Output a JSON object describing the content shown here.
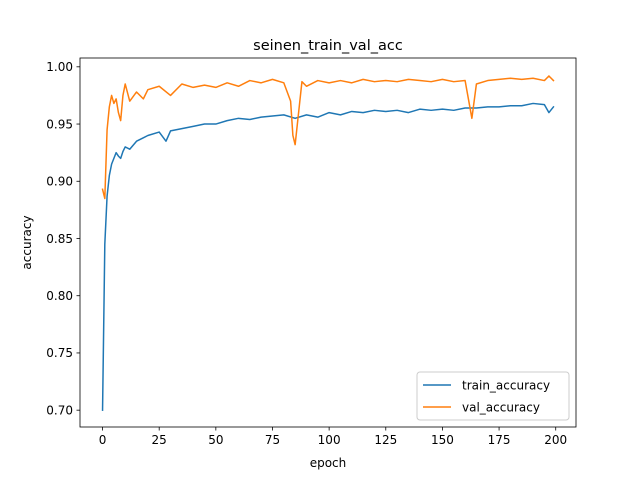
{
  "chart_data": {
    "type": "line",
    "title": "seinen_train_val_acc",
    "xlabel": "epoch",
    "ylabel": "accuracy",
    "xlim": [
      -9.95,
      208.95
    ],
    "ylim": [
      0.6853,
      1.0077
    ],
    "x_ticks": [
      0,
      25,
      50,
      75,
      100,
      125,
      150,
      175,
      200
    ],
    "y_ticks": [
      0.7,
      0.75,
      0.8,
      0.85,
      0.9,
      0.95,
      1.0
    ],
    "y_tick_decimals": 2,
    "grid": false,
    "legend_position": "lower-right",
    "series": [
      {
        "name": "train_accuracy",
        "color": "#1f77b4",
        "x": [
          0,
          1,
          2,
          3,
          4,
          5,
          6,
          7,
          8,
          9,
          10,
          12,
          15,
          18,
          20,
          25,
          28,
          30,
          35,
          40,
          45,
          50,
          55,
          60,
          65,
          70,
          75,
          80,
          85,
          90,
          95,
          100,
          105,
          110,
          115,
          120,
          125,
          130,
          135,
          140,
          145,
          150,
          155,
          160,
          165,
          170,
          175,
          180,
          185,
          190,
          195,
          197,
          199
        ],
        "values": [
          0.7,
          0.845,
          0.887,
          0.905,
          0.915,
          0.92,
          0.925,
          0.922,
          0.92,
          0.926,
          0.93,
          0.928,
          0.935,
          0.938,
          0.94,
          0.943,
          0.935,
          0.944,
          0.946,
          0.948,
          0.95,
          0.95,
          0.953,
          0.955,
          0.954,
          0.956,
          0.957,
          0.958,
          0.955,
          0.958,
          0.956,
          0.96,
          0.958,
          0.961,
          0.96,
          0.962,
          0.961,
          0.962,
          0.96,
          0.963,
          0.962,
          0.963,
          0.962,
          0.964,
          0.964,
          0.965,
          0.965,
          0.966,
          0.966,
          0.968,
          0.967,
          0.96,
          0.965
        ]
      },
      {
        "name": "val_accuracy",
        "color": "#ff7f0e",
        "x": [
          0,
          1,
          2,
          3,
          4,
          5,
          6,
          7,
          8,
          9,
          10,
          12,
          15,
          18,
          20,
          25,
          30,
          35,
          40,
          45,
          50,
          55,
          60,
          65,
          70,
          75,
          80,
          83,
          84,
          85,
          88,
          90,
          95,
          100,
          105,
          110,
          115,
          120,
          125,
          130,
          135,
          140,
          145,
          150,
          155,
          160,
          163,
          165,
          170,
          175,
          180,
          185,
          190,
          195,
          197,
          199
        ],
        "values": [
          0.893,
          0.885,
          0.945,
          0.965,
          0.975,
          0.968,
          0.972,
          0.96,
          0.953,
          0.975,
          0.985,
          0.97,
          0.978,
          0.972,
          0.98,
          0.983,
          0.975,
          0.985,
          0.982,
          0.984,
          0.982,
          0.986,
          0.983,
          0.988,
          0.986,
          0.989,
          0.986,
          0.97,
          0.94,
          0.932,
          0.987,
          0.983,
          0.988,
          0.986,
          0.988,
          0.986,
          0.989,
          0.987,
          0.988,
          0.987,
          0.989,
          0.988,
          0.987,
          0.989,
          0.987,
          0.988,
          0.955,
          0.985,
          0.988,
          0.989,
          0.99,
          0.989,
          0.99,
          0.988,
          0.992,
          0.988
        ]
      }
    ]
  }
}
